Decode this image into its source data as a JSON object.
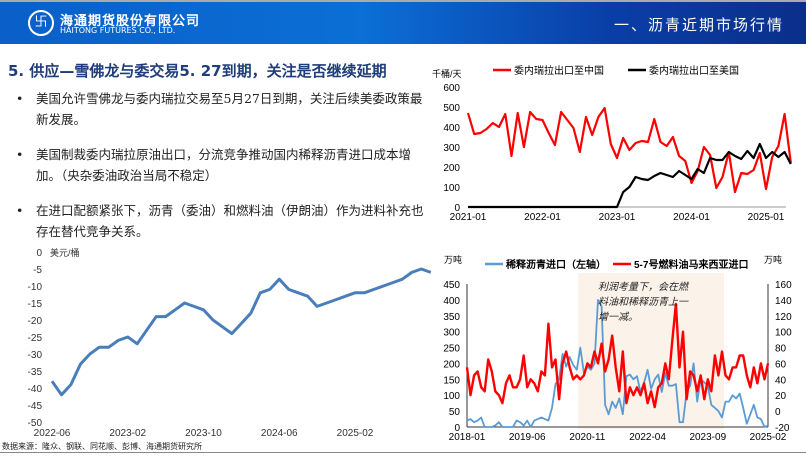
{
  "header": {
    "company_cn": "海通期货股份有限公司",
    "company_en": "HAITONG FUTURES CO., LTD.",
    "section_title": "一、沥青近期市场行情",
    "logo_icon": "haitong-logo-icon"
  },
  "title": "5. 供应—雪佛龙与委交易5. 27到期，关注是否继续延期",
  "bullets": [
    "美国允许雪佛龙与委内瑞拉交易至5月27日到期，关注后续美委政策最新发展。",
    "美国制裁委内瑞拉原油出口，分流竞争推动国内稀释沥青进口成本增加。（央杂委油政治当局不稳定）",
    "在进口配额紧张下，沥青（委油）和燃料油（伊朗油）作为进料补充也存在替代竞争关系。"
  ],
  "source": "数据来源：隆众、钢联、同花顺、彭博、海通期货研究所",
  "chart_data": [
    {
      "type": "line",
      "ylabel": "美元/桶",
      "ylim": [
        -50,
        0
      ],
      "yticks": [
        "0",
        "-5",
        "-10",
        "-15",
        "-20",
        "-25",
        "-30",
        "-35",
        "-40",
        "-45",
        "-50"
      ],
      "xticks": [
        "2022-06",
        "2023-02",
        "2023-10",
        "2024-06",
        "2025-02"
      ],
      "x_start": "2022-06",
      "x_step": "month",
      "color": "#4a7ebb",
      "values": [
        -38,
        -42,
        -39,
        -33,
        -30,
        -28,
        -28,
        -26,
        -25,
        -27,
        -23,
        -19,
        -19,
        -17,
        -15,
        -16,
        -17,
        -20,
        -22,
        -24,
        -21,
        -18,
        -12,
        -11,
        -8,
        -11,
        -12,
        -13,
        -16,
        -15,
        -14,
        -13,
        -12,
        -12,
        -11,
        -10,
        -9,
        -8,
        -6,
        -5,
        -6
      ]
    },
    {
      "type": "line",
      "ylabel": "千桶/天",
      "ylim": [
        0,
        600
      ],
      "yticks": [
        "0",
        "100",
        "200",
        "300",
        "400",
        "500",
        "600"
      ],
      "xticks": [
        "2021-01",
        "2022-01",
        "2023-01",
        "2024-01",
        "2025-01"
      ],
      "x_start": "2021-01",
      "x_step": "month",
      "legend": "top",
      "series": [
        {
          "name": "委内瑞拉出口至中国",
          "color": "#ff0000",
          "values": [
            470,
            365,
            370,
            390,
            420,
            400,
            465,
            255,
            470,
            300,
            475,
            440,
            435,
            370,
            310,
            475,
            435,
            395,
            275,
            450,
            360,
            450,
            495,
            315,
            245,
            345,
            285,
            320,
            330,
            325,
            440,
            325,
            305,
            350,
            255,
            230,
            120,
            180,
            300,
            260,
            95,
            150,
            275,
            75,
            170,
            165,
            185,
            270,
            90,
            250,
            305,
            465,
            220
          ]
        },
        {
          "name": "委内瑞拉出口至美国",
          "color": "#000000",
          "values": [
            0,
            0,
            0,
            0,
            0,
            0,
            0,
            0,
            0,
            0,
            0,
            0,
            0,
            0,
            0,
            0,
            0,
            0,
            0,
            0,
            0,
            0,
            0,
            0,
            0,
            75,
            100,
            150,
            140,
            135,
            155,
            170,
            160,
            150,
            180,
            160,
            140,
            190,
            170,
            245,
            235,
            235,
            275,
            255,
            240,
            280,
            245,
            315,
            245,
            275,
            250,
            275,
            215
          ]
        }
      ]
    },
    {
      "type": "line",
      "ylabel_left": "万吨",
      "ylabel_right": "万吨",
      "ylim_left": [
        0,
        450
      ],
      "ylim_right": [
        -20,
        160
      ],
      "yticks_left": [
        "0",
        "50",
        "100",
        "150",
        "200",
        "250",
        "300",
        "350",
        "400",
        "450"
      ],
      "yticks_right": [
        "-20",
        "0",
        "20",
        "40",
        "60",
        "80",
        "100",
        "120",
        "140",
        "160"
      ],
      "xticks": [
        "2018-01",
        "2019-06",
        "2020-11",
        "2022-04",
        "2023-09",
        "2025-02"
      ],
      "x_start": "2018-01",
      "x_step": "month",
      "legend": "top",
      "annotation": "利润考量下，会在燃料油和稀释沥青上一增一减。",
      "series": [
        {
          "name": "稀释沥青进口（左轴）",
          "axis": "left",
          "color": "#5b9bd5",
          "values": [
            20,
            25,
            15,
            20,
            30,
            0,
            0,
            0,
            5,
            15,
            0,
            0,
            0,
            0,
            20,
            15,
            5,
            20,
            0,
            20,
            25,
            30,
            25,
            20,
            60,
            135,
            150,
            230,
            190,
            220,
            195,
            180,
            250,
            170,
            190,
            180,
            200,
            400,
            380,
            70,
            40,
            80,
            60,
            90,
            40,
            160,
            165,
            150,
            160,
            110,
            140,
            180,
            120,
            150,
            165,
            110,
            170,
            130,
            130,
            135,
            15,
            15,
            110,
            130,
            200,
            80,
            150,
            140,
            130,
            70,
            60,
            50,
            30,
            80,
            80,
            100,
            90,
            105,
            60,
            10,
            40,
            70,
            30,
            25,
            0,
            5
          ]
        },
        {
          "name": "5-7号燃料油马来西亚进口",
          "axis": "right",
          "color": "#ff0000",
          "values": [
            55,
            20,
            45,
            50,
            30,
            25,
            65,
            50,
            25,
            20,
            10,
            35,
            45,
            30,
            30,
            40,
            70,
            30,
            40,
            35,
            25,
            50,
            45,
            110,
            55,
            65,
            15,
            60,
            75,
            55,
            40,
            45,
            40,
            45,
            60,
            55,
            75,
            60,
            85,
            50,
            65,
            95,
            55,
            25,
            75,
            10,
            30,
            20,
            30,
            20,
            35,
            10,
            25,
            5,
            30,
            35,
            60,
            40,
            90,
            135,
            55,
            100,
            15,
            50,
            45,
            25,
            45,
            15,
            40,
            25,
            70,
            45,
            75,
            45,
            40,
            55,
            55,
            70,
            70,
            45,
            30,
            55,
            35,
            60,
            40,
            60
          ]
        }
      ]
    }
  ]
}
